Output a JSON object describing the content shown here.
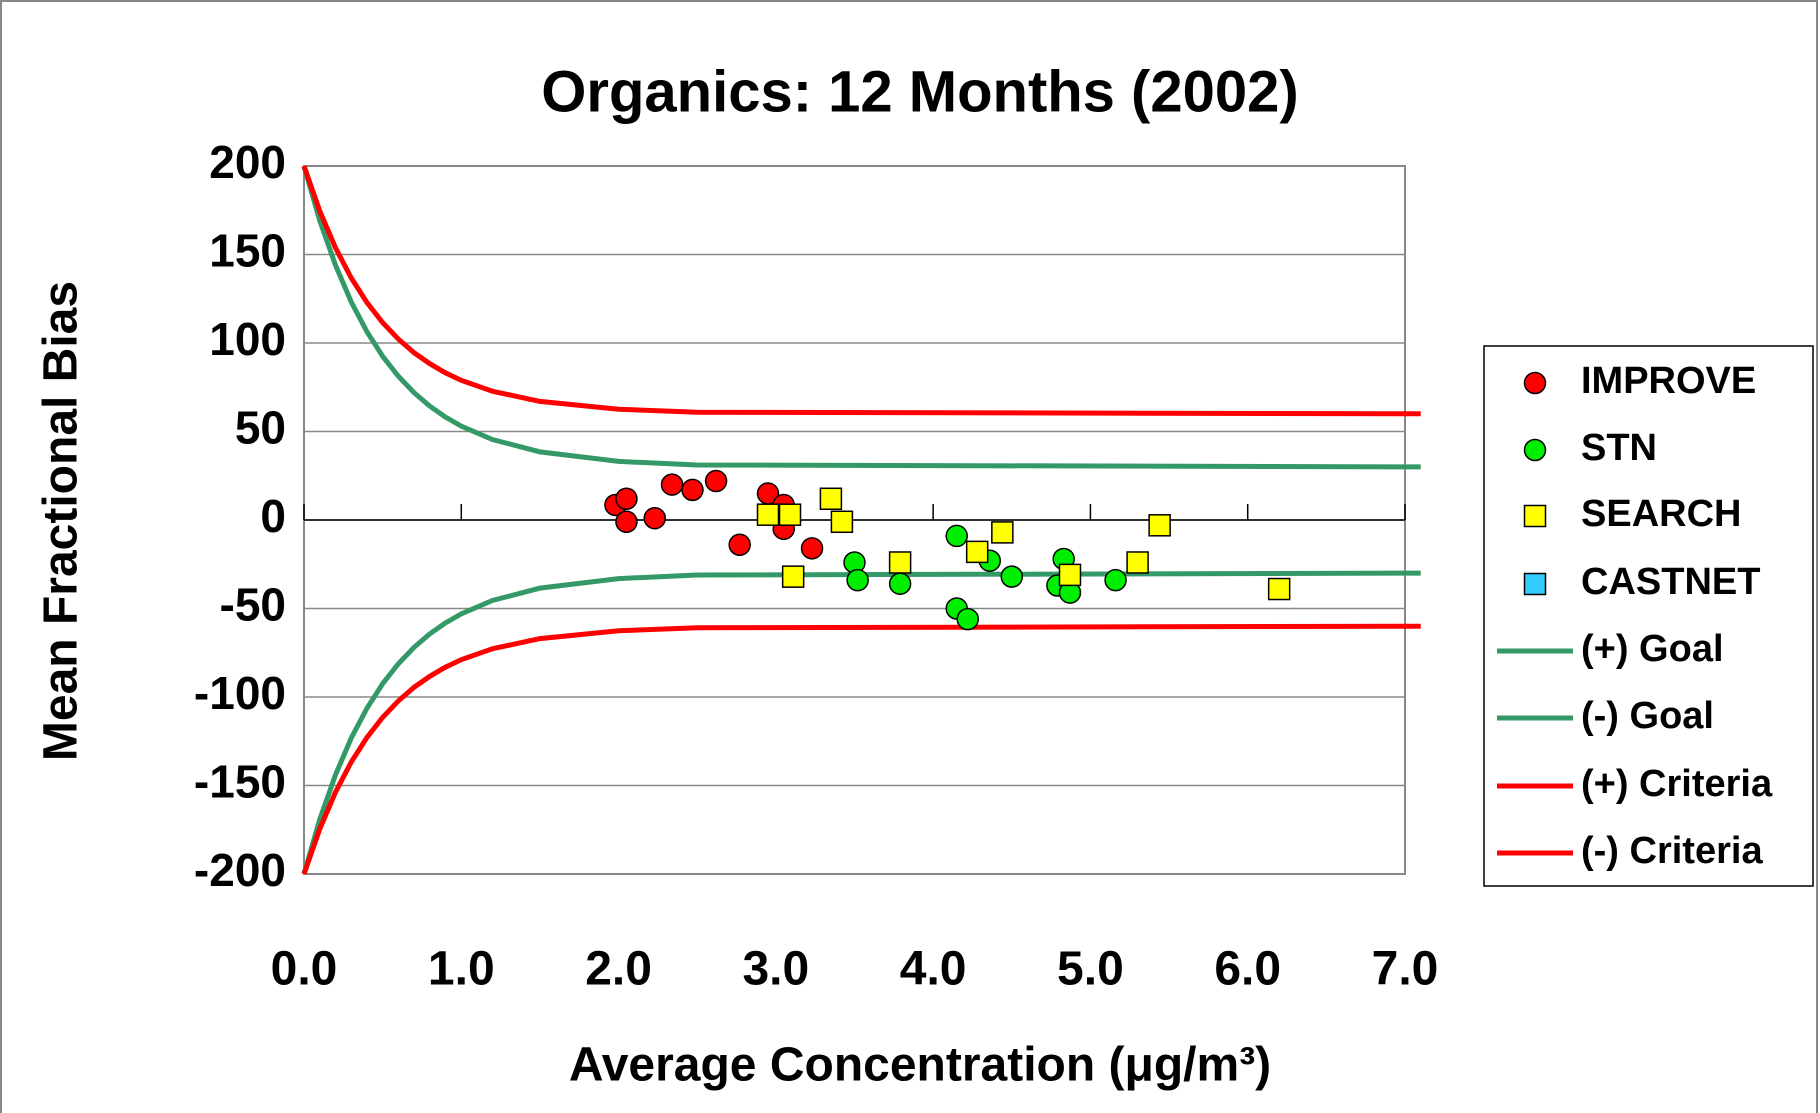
{
  "chart_data": {
    "type": "scatter",
    "title": "Organics: 12 Months (2002)",
    "x_label": "Average Concentration (μg/m³)",
    "y_label": "Mean Fractional Bias",
    "xlim": [
      0,
      7
    ],
    "ylim": [
      -200,
      200
    ],
    "xticks": [
      {
        "value": 0,
        "label": "0.0"
      },
      {
        "value": 1,
        "label": "1.0"
      },
      {
        "value": 2,
        "label": "2.0"
      },
      {
        "value": 3,
        "label": "3.0"
      },
      {
        "value": 4,
        "label": "4.0"
      },
      {
        "value": 5,
        "label": "5.0"
      },
      {
        "value": 6,
        "label": "6.0"
      },
      {
        "value": 7,
        "label": "7.0"
      }
    ],
    "yticks": [
      -200,
      -150,
      -100,
      -50,
      0,
      50,
      100,
      150,
      200
    ],
    "grid": true,
    "legend": "right",
    "series": [
      {
        "name": "IMPROVE",
        "mode": "markers",
        "marker": "circle",
        "color": "#ff0000",
        "x": [
          1.98,
          2.05,
          2.05,
          2.23,
          2.34,
          2.47,
          2.62,
          2.77,
          2.95,
          3.05,
          3.05,
          3.23
        ],
        "values": [
          8.5,
          12,
          -1,
          1,
          20,
          17,
          22,
          -14,
          15,
          8.5,
          -5,
          -16
        ]
      },
      {
        "name": "STN",
        "mode": "markers",
        "marker": "circle",
        "color": "#00ee00",
        "x": [
          3.5,
          3.52,
          3.79,
          4.15,
          4.15,
          4.22,
          4.36,
          4.5,
          4.79,
          4.83,
          4.87,
          5.16
        ],
        "values": [
          -24,
          -34,
          -36,
          -9,
          -50,
          -56,
          -23,
          -32,
          -37,
          -22,
          -41,
          -34
        ]
      },
      {
        "name": "SEARCH",
        "mode": "markers",
        "marker": "square",
        "color": "#ffff00",
        "x": [
          2.95,
          3.09,
          3.11,
          3.35,
          3.42,
          3.79,
          4.28,
          4.44,
          4.87,
          5.3,
          5.44,
          6.2
        ],
        "values": [
          3,
          3,
          -32,
          12,
          -1,
          -24,
          -18,
          -7,
          -31,
          -24,
          -3,
          -39
        ]
      },
      {
        "name": "CASTNET",
        "mode": "markers",
        "marker": "square",
        "color": "#33ccff",
        "x": [],
        "values": []
      },
      {
        "name": "(+) Goal",
        "mode": "line",
        "color": "#339966",
        "x": [
          0,
          0.1,
          0.2,
          0.3,
          0.4,
          0.5,
          0.6,
          0.7,
          0.8,
          0.9,
          1.0,
          1.2,
          1.5,
          2.0,
          2.5,
          7.1
        ],
        "values": [
          200,
          169.2,
          144.0,
          123.3,
          106.4,
          92.5,
          81.2,
          71.9,
          64.3,
          58.1,
          53.0,
          45.4,
          38.5,
          33.1,
          31.1,
          30
        ]
      },
      {
        "name": "(-) Goal",
        "mode": "line",
        "color": "#339966",
        "x": [
          0,
          0.1,
          0.2,
          0.3,
          0.4,
          0.5,
          0.6,
          0.7,
          0.8,
          0.9,
          1.0,
          1.2,
          1.5,
          2.0,
          2.5,
          7.1
        ],
        "values": [
          -200,
          -169.2,
          -144.0,
          -123.3,
          -106.4,
          -92.5,
          -81.2,
          -71.9,
          -64.3,
          -58.1,
          -53.0,
          -45.4,
          -38.5,
          -33.1,
          -31.1,
          -30
        ]
      },
      {
        "name": "(+) Criteria",
        "mode": "line",
        "color": "#ff0000",
        "x": [
          0,
          0.1,
          0.2,
          0.3,
          0.4,
          0.5,
          0.6,
          0.7,
          0.8,
          0.9,
          1.0,
          1.2,
          1.5,
          2.0,
          2.5,
          7.1
        ],
        "values": [
          200,
          174.6,
          153.8,
          136.8,
          122.9,
          111.5,
          102.2,
          94.5,
          88.3,
          83.1,
          78.9,
          72.7,
          67.0,
          62.6,
          60.9,
          60
        ]
      },
      {
        "name": "(-) Criteria",
        "mode": "line",
        "color": "#ff0000",
        "x": [
          0,
          0.1,
          0.2,
          0.3,
          0.4,
          0.5,
          0.6,
          0.7,
          0.8,
          0.9,
          1.0,
          1.2,
          1.5,
          2.0,
          2.5,
          7.1
        ],
        "values": [
          -200,
          -174.6,
          -153.8,
          -136.8,
          -122.9,
          -111.5,
          -102.2,
          -94.5,
          -88.3,
          -83.1,
          -78.9,
          -72.7,
          -67.0,
          -62.6,
          -60.9,
          -60
        ]
      }
    ]
  }
}
